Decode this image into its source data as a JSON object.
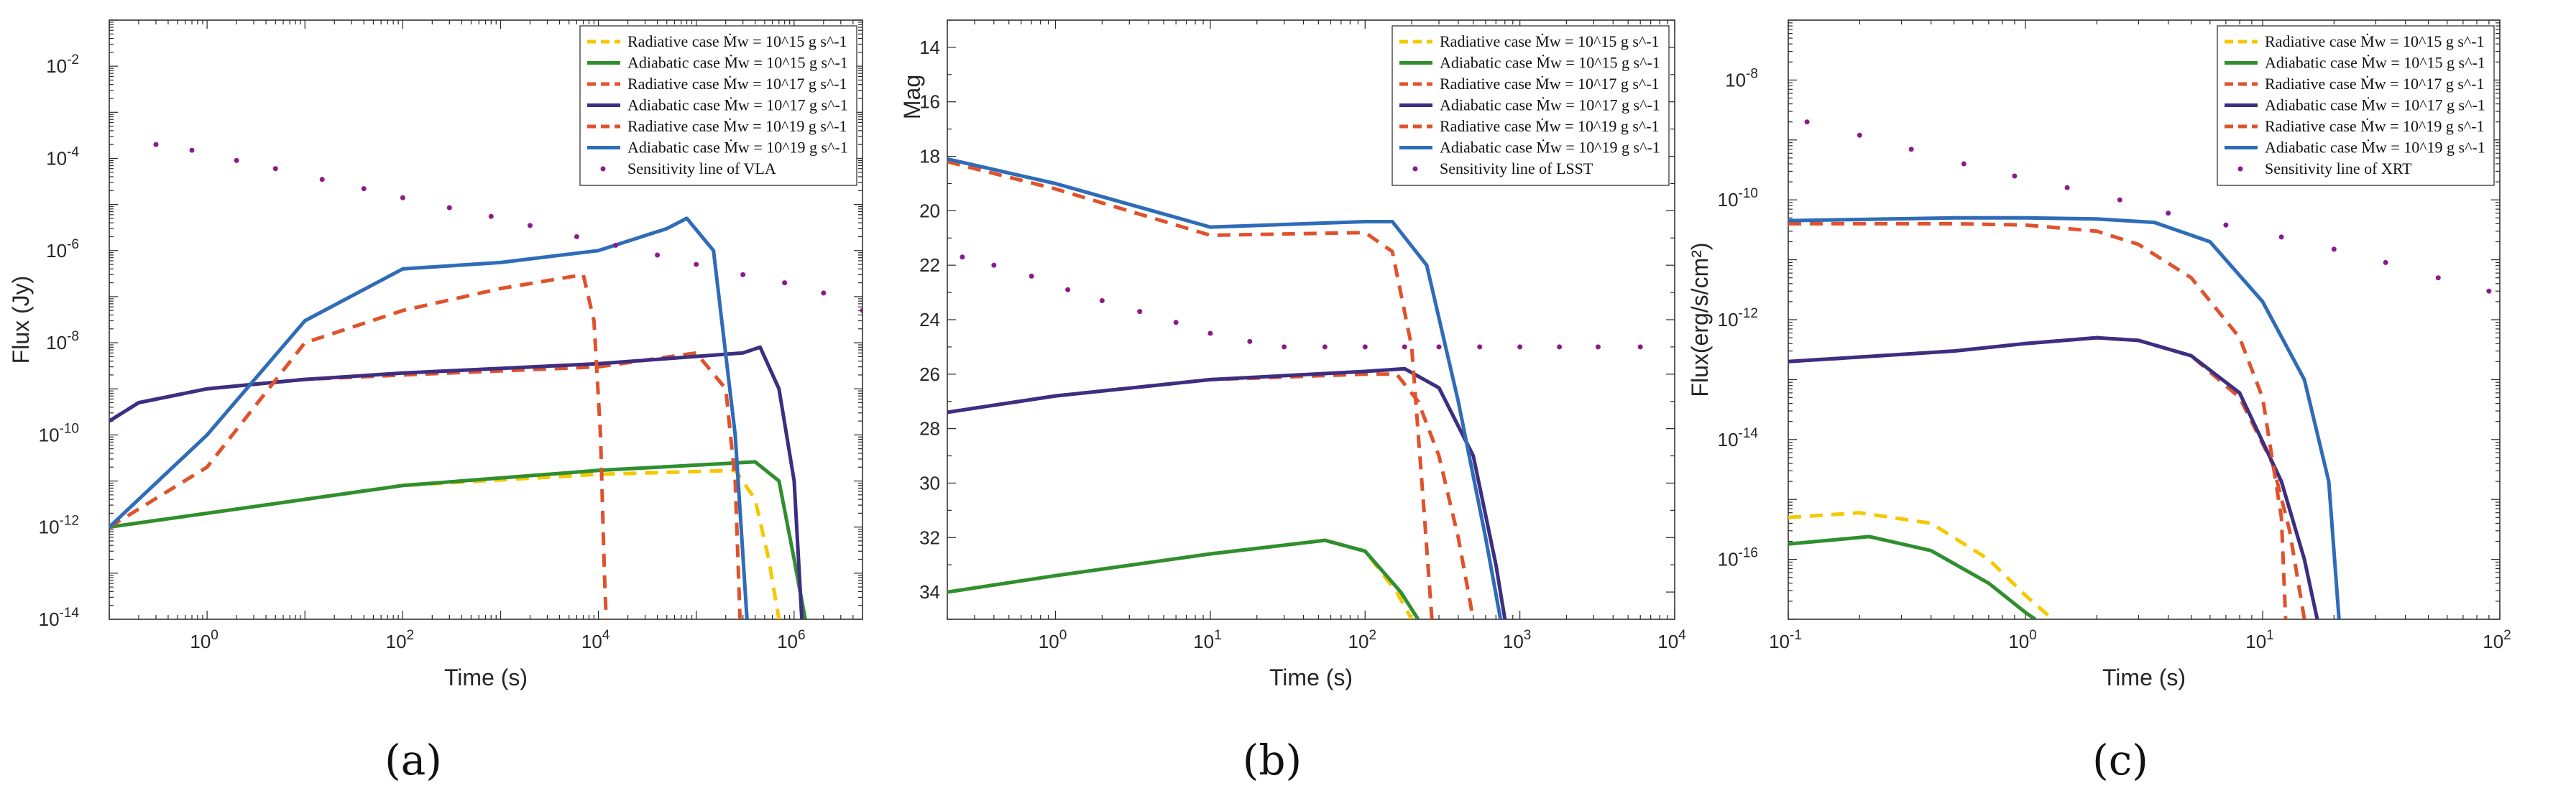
{
  "colors": {
    "yellow": "#f5c800",
    "green": "#2f8f2f",
    "orange_dark": "#e0522c",
    "purple": "#3d2e82",
    "blue": "#2f6cb8",
    "sensitivity": "#8b1a8b"
  },
  "chart_data": [
    {
      "caption": "(a)",
      "type": "line",
      "xlabel": "Time (s)",
      "ylabel": "Flux (Jy)",
      "xscale": "log",
      "yscale": "log",
      "xlim": [
        0.1,
        5000000
      ],
      "ylim": [
        1e-14,
        0.1
      ],
      "x_ticks": [
        1,
        100,
        10000,
        1000000
      ],
      "x_tick_labels": [
        [
          "10",
          "0"
        ],
        [
          "10",
          "2"
        ],
        [
          "10",
          "4"
        ],
        [
          "10",
          "6"
        ]
      ],
      "y_ticks": [
        1e-14,
        1e-12,
        1e-10,
        1e-08,
        1e-06,
        0.0001,
        0.01
      ],
      "y_tick_labels": [
        [
          "10",
          "-14"
        ],
        [
          "10",
          "-12"
        ],
        [
          "10",
          "-10"
        ],
        [
          "10",
          "-8"
        ],
        [
          "10",
          "-6"
        ],
        [
          "10",
          "-4"
        ],
        [
          "10",
          "-2"
        ]
      ],
      "legend_position": "top-right",
      "series": [
        {
          "name": "Radiative case Ṁw = 10^15 g s^-1",
          "color": "yellow",
          "style": "dashed",
          "x": [
            0.1,
            100,
            10000,
            250000,
            400000,
            550000,
            700000
          ],
          "y": [
            1e-12,
            8e-12,
            1.4e-11,
            1.7e-11,
            4e-12,
            2e-13,
            1e-14
          ]
        },
        {
          "name": "Adiabatic case Ṁw = 10^15 g s^-1",
          "color": "green",
          "style": "solid",
          "x": [
            0.1,
            100,
            10000,
            400000,
            700000,
            1000000,
            1300000
          ],
          "y": [
            1e-12,
            8e-12,
            1.7e-11,
            2.6e-11,
            1e-11,
            2e-13,
            1e-14
          ]
        },
        {
          "name": "Radiative case Ṁw = 10^17 g s^-1",
          "color": "orange",
          "style": "dashed",
          "x": [
            0.1,
            0.2,
            1,
            10,
            100,
            10000,
            100000,
            200000,
            250000,
            280000
          ],
          "y": [
            2e-10,
            5e-10,
            1e-09,
            1.6e-09,
            2e-09,
            3e-09,
            6e-09,
            1e-09,
            1e-11,
            1e-14
          ]
        },
        {
          "name": "Adiabatic case Ṁw = 10^17 g s^-1",
          "color": "purple",
          "style": "solid",
          "x": [
            0.1,
            0.2,
            1,
            10,
            100,
            10000,
            300000,
            450000,
            700000,
            1000000,
            1200000
          ],
          "y": [
            2e-10,
            5e-10,
            1e-09,
            1.6e-09,
            2.2e-09,
            3.5e-09,
            6e-09,
            8e-09,
            1e-09,
            1e-11,
            1e-14
          ]
        },
        {
          "name": "Radiative case Ṁw = 10^19 g s^-1",
          "color": "orange_dark",
          "style": "dashed",
          "x": [
            0.1,
            1,
            10,
            100,
            1000,
            7000,
            9000,
            10500,
            11500,
            12000
          ],
          "y": [
            1e-12,
            2e-11,
            1e-08,
            5e-08,
            1.5e-07,
            3e-07,
            3e-08,
            1e-10,
            1e-13,
            1e-14
          ]
        },
        {
          "name": "Adiabatic case Ṁw = 10^19 g s^-1",
          "color": "blue",
          "style": "solid",
          "x": [
            0.1,
            1,
            10,
            100,
            1000,
            10000,
            50000,
            80000,
            150000,
            250000,
            330000
          ],
          "y": [
            1e-12,
            1e-10,
            3e-08,
            4e-07,
            5.5e-07,
            1e-06,
            3e-06,
            5e-06,
            1e-06,
            1e-10,
            1e-14
          ]
        },
        {
          "name": "Sensitivity line of VLA",
          "color": "sensitivity",
          "style": "dotted",
          "x": [
            0.3,
            0.7,
            2,
            5,
            15,
            40,
            100,
            300,
            800,
            2000,
            6000,
            15000,
            40000,
            100000,
            300000,
            800000,
            2000000,
            5000000
          ],
          "y": [
            0.0002,
            0.00015,
            9e-05,
            6e-05,
            3.5e-05,
            2.2e-05,
            1.4e-05,
            8.5e-06,
            5.5e-06,
            3.5e-06,
            2e-06,
            1.3e-06,
            8e-07,
            5e-07,
            3e-07,
            2e-07,
            1.2e-07,
            5e-08
          ]
        }
      ]
    },
    {
      "caption": "(b)",
      "type": "line",
      "xlabel": "Time (s)",
      "ylabel": "Mag",
      "xscale": "log",
      "yscale": "linear",
      "y_reversed": true,
      "xlim": [
        0.2,
        10000
      ],
      "ylim": [
        35,
        13
      ],
      "x_ticks": [
        1,
        10,
        100,
        1000,
        10000
      ],
      "x_tick_labels": [
        [
          "10",
          "0"
        ],
        [
          "10",
          "1"
        ],
        [
          "10",
          "2"
        ],
        [
          "10",
          "3"
        ],
        [
          "10",
          "4"
        ]
      ],
      "y_ticks": [
        14,
        16,
        18,
        20,
        22,
        24,
        26,
        28,
        30,
        32,
        34
      ],
      "y_tick_labels": [
        [
          "14",
          ""
        ],
        [
          "16",
          ""
        ],
        [
          "18",
          ""
        ],
        [
          "20",
          ""
        ],
        [
          "22",
          ""
        ],
        [
          "24",
          ""
        ],
        [
          "26",
          ""
        ],
        [
          "28",
          ""
        ],
        [
          "30",
          ""
        ],
        [
          "32",
          ""
        ],
        [
          "34",
          ""
        ]
      ],
      "legend_position": "top-right",
      "series": [
        {
          "name": "Radiative case Ṁw = 10^15 g s^-1",
          "color": "yellow",
          "style": "dashed",
          "x": [
            0.2,
            1,
            10,
            55,
            100,
            160,
            200
          ],
          "y": [
            34,
            33.4,
            32.6,
            32.1,
            32.5,
            34,
            35
          ]
        },
        {
          "name": "Adiabatic case Ṁw = 10^15 g s^-1",
          "color": "green",
          "style": "solid",
          "x": [
            0.2,
            1,
            10,
            55,
            100,
            170,
            220
          ],
          "y": [
            34,
            33.4,
            32.6,
            32.1,
            32.5,
            34,
            35
          ]
        },
        {
          "name": "Radiative case Ṁw = 10^17 g s^-1",
          "color": "orange",
          "style": "dashed",
          "x": [
            0.2,
            1,
            10,
            100,
            160,
            220,
            300,
            400,
            500
          ],
          "y": [
            27.4,
            26.8,
            26.2,
            26,
            26,
            27,
            29,
            32,
            35
          ]
        },
        {
          "name": "Adiabatic case Ṁw = 10^17 g s^-1",
          "color": "purple",
          "style": "solid",
          "x": [
            0.2,
            1,
            10,
            100,
            180,
            300,
            500,
            700,
            800
          ],
          "y": [
            27.4,
            26.8,
            26.2,
            25.9,
            25.8,
            26.5,
            29,
            33,
            35
          ]
        },
        {
          "name": "Radiative case Ṁw = 10^19 g s^-1",
          "color": "orange_dark",
          "style": "dashed",
          "x": [
            0.2,
            1,
            10,
            100,
            150,
            200,
            240,
            270
          ],
          "y": [
            18.2,
            19.2,
            20.9,
            20.8,
            21.5,
            25,
            31,
            35
          ]
        },
        {
          "name": "Adiabatic case Ṁw = 10^19 g s^-1",
          "color": "blue",
          "style": "solid",
          "x": [
            0.2,
            1,
            10,
            100,
            150,
            250,
            400,
            600,
            750
          ],
          "y": [
            18.1,
            19,
            20.6,
            20.4,
            20.4,
            22,
            27,
            32,
            35
          ]
        },
        {
          "name": "Sensitivity line of LSST",
          "color": "sensitivity",
          "style": "dotted",
          "x": [
            0.25,
            0.4,
            0.7,
            1.2,
            2,
            3.5,
            6,
            10,
            18,
            30,
            55,
            100,
            180,
            300,
            550,
            1000,
            1800,
            3200,
            6000
          ],
          "y": [
            21.7,
            22,
            22.4,
            22.9,
            23.3,
            23.7,
            24.1,
            24.5,
            24.8,
            25,
            25,
            25,
            25,
            25,
            25,
            25,
            25,
            25,
            25
          ]
        }
      ]
    },
    {
      "caption": "(c)",
      "type": "line",
      "xlabel": "Time (s)",
      "ylabel": "Flux(erg/s/cm²)",
      "xscale": "log",
      "yscale": "log",
      "xlim": [
        0.1,
        100
      ],
      "ylim": [
        1e-17,
        1e-07
      ],
      "x_ticks": [
        0.1,
        1,
        10,
        100
      ],
      "x_tick_labels": [
        [
          "10",
          "-1"
        ],
        [
          "10",
          "0"
        ],
        [
          "10",
          "1"
        ],
        [
          "10",
          "2"
        ]
      ],
      "y_ticks": [
        1e-16,
        1e-14,
        1e-12,
        1e-10,
        1e-08
      ],
      "y_tick_labels": [
        [
          "10",
          "-16"
        ],
        [
          "10",
          "-14"
        ],
        [
          "10",
          "-12"
        ],
        [
          "10",
          "-10"
        ],
        [
          "10",
          "-8"
        ]
      ],
      "legend_position": "top-right",
      "series": [
        {
          "name": "Radiative case Ṁw = 10^15 g s^-1",
          "color": "yellow",
          "style": "dashed",
          "x": [
            0.1,
            0.2,
            0.4,
            0.7,
            1,
            1.3
          ],
          "y": [
            5e-16,
            6e-16,
            4e-16,
            1e-16,
            2.5e-17,
            1e-17
          ]
        },
        {
          "name": "Adiabatic case Ṁw = 10^15 g s^-1",
          "color": "green",
          "style": "solid",
          "x": [
            0.1,
            0.22,
            0.4,
            0.7,
            1,
            1.1
          ],
          "y": [
            1.8e-16,
            2.4e-16,
            1.4e-16,
            4e-17,
            1.3e-17,
            1e-17
          ]
        },
        {
          "name": "Radiative case Ṁw = 10^17 g s^-1",
          "color": "orange",
          "style": "dashed",
          "x": [
            0.1,
            0.5,
            1,
            2,
            3,
            5,
            8,
            11,
            13,
            15
          ],
          "y": [
            2e-13,
            3e-13,
            4e-13,
            5e-13,
            4.5e-13,
            2.5e-13,
            5e-14,
            4e-15,
            3e-16,
            1e-17
          ]
        },
        {
          "name": "Adiabatic case Ṁw = 10^17 g s^-1",
          "color": "purple",
          "style": "solid",
          "x": [
            0.1,
            0.5,
            1,
            2,
            3,
            5,
            8,
            12,
            15,
            17
          ],
          "y": [
            2e-13,
            3e-13,
            4e-13,
            5e-13,
            4.5e-13,
            2.5e-13,
            6e-14,
            2e-15,
            1e-16,
            1e-17
          ]
        },
        {
          "name": "Radiative case Ṁw = 10^19 g s^-1",
          "color": "orange_dark",
          "style": "dashed",
          "x": [
            0.1,
            0.5,
            1,
            2,
            3,
            5,
            8,
            10,
            12,
            12.5
          ],
          "y": [
            4e-11,
            4e-11,
            3.8e-11,
            3e-11,
            1.8e-11,
            5e-12,
            5e-13,
            5e-14,
            5e-16,
            1e-17
          ]
        },
        {
          "name": "Adiabatic case Ṁw = 10^19 g s^-1",
          "color": "blue",
          "style": "solid",
          "x": [
            0.1,
            0.5,
            1,
            2,
            3.5,
            6,
            10,
            15,
            19,
            21
          ],
          "y": [
            4.5e-11,
            5e-11,
            5e-11,
            4.8e-11,
            4.2e-11,
            2e-11,
            2e-12,
            1e-13,
            2e-15,
            1e-17
          ]
        },
        {
          "name": "Sensitivity line of XRT",
          "color": "sensitivity",
          "style": "dotted",
          "x": [
            0.12,
            0.2,
            0.33,
            0.55,
            0.9,
            1.5,
            2.5,
            4,
            7,
            12,
            20,
            33,
            55,
            90
          ],
          "y": [
            2e-09,
            1.2e-09,
            7e-10,
            4e-10,
            2.5e-10,
            1.6e-10,
            1e-10,
            6e-11,
            3.8e-11,
            2.4e-11,
            1.5e-11,
            9e-12,
            5e-12,
            3e-12
          ]
        }
      ]
    }
  ]
}
